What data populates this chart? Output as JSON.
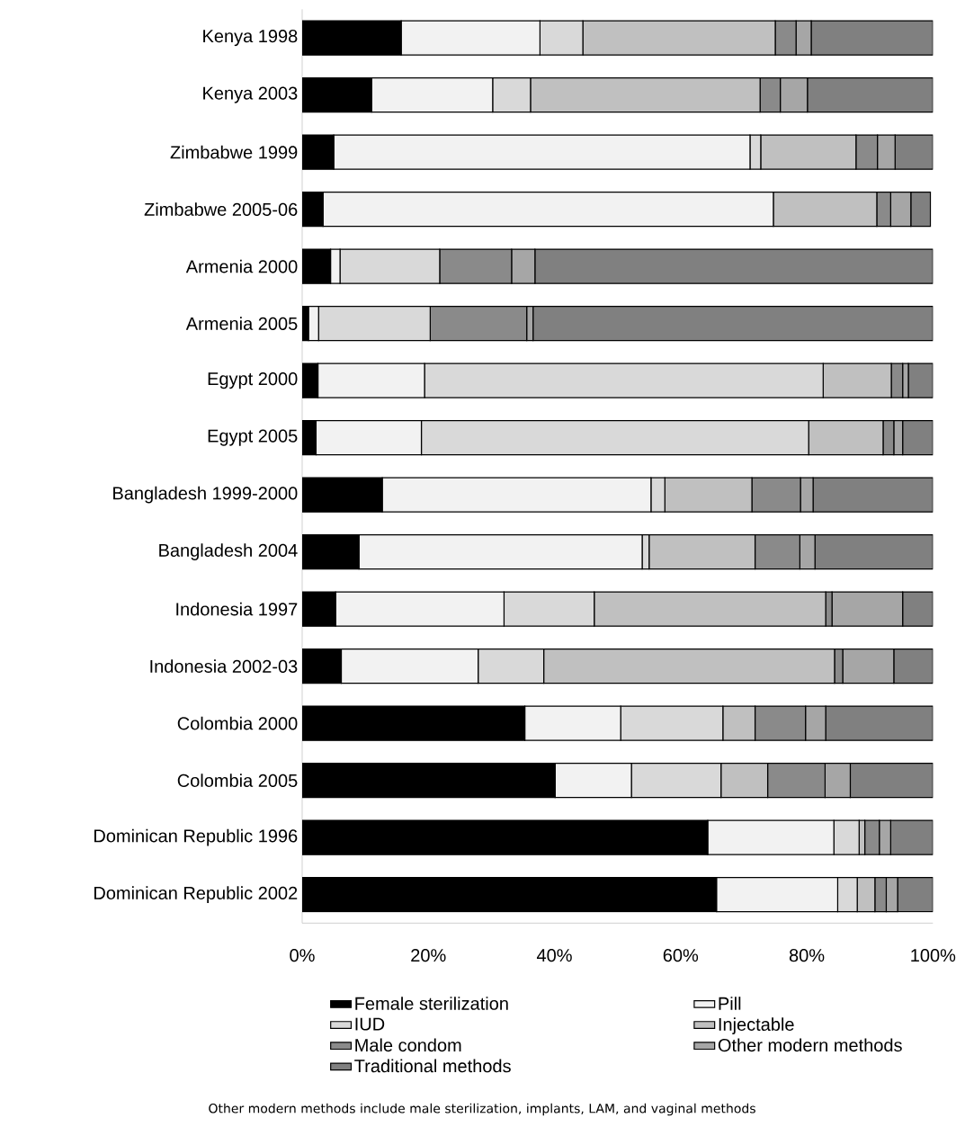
{
  "chart_data": {
    "type": "bar",
    "orientation": "horizontal",
    "stacked": true,
    "categories": [
      "Kenya 1998",
      "Kenya 2003",
      "Zimbabwe 1999",
      "Zimbabwe 2005-06",
      "Armenia 2000",
      "Armenia 2005",
      "Egypt 2000",
      "Egypt 2005",
      "Bangladesh 1999-2000",
      "Bangladesh 2004",
      "Indonesia 1997",
      "Indonesia 2002-03",
      "Colombia 2000",
      "Colombia 2005",
      "Dominican Republic 1996",
      "Dominican Republic 2002"
    ],
    "series": [
      {
        "name": "Female sterilization",
        "color": "#000000",
        "values": [
          15.7,
          11.0,
          5.0,
          3.3,
          4.5,
          1.0,
          2.5,
          2.2,
          12.7,
          9.0,
          5.3,
          6.2,
          35.3,
          40.1,
          64.3,
          65.7
        ]
      },
      {
        "name": "Pill",
        "color": "#f2f2f2",
        "values": [
          22.0,
          19.2,
          66.0,
          71.4,
          1.5,
          1.6,
          16.9,
          16.7,
          42.6,
          44.9,
          26.7,
          21.7,
          15.2,
          12.1,
          20.0,
          19.2
        ]
      },
      {
        "name": "IUD",
        "color": "#d9d9d9",
        "values": [
          6.8,
          6.0,
          1.7,
          null,
          15.8,
          17.7,
          63.2,
          61.4,
          2.2,
          1.1,
          14.3,
          10.4,
          16.2,
          14.2,
          4.0,
          3.1
        ]
      },
      {
        "name": "Injectable",
        "color": "#c0c0c0",
        "values": [
          30.5,
          36.4,
          15.1,
          16.4,
          0,
          0,
          10.8,
          11.8,
          13.8,
          16.8,
          36.7,
          46.1,
          5.1,
          7.4,
          0.9,
          2.8
        ]
      },
      {
        "name": "Male condom",
        "color": "#8a8a8a",
        "values": [
          3.3,
          3.2,
          3.4,
          2.2,
          11.4,
          15.3,
          1.8,
          1.7,
          7.7,
          7.1,
          1.0,
          1.3,
          8.0,
          9.1,
          2.3,
          1.8
        ]
      },
      {
        "name": "Other modern methods",
        "color": "#a6a6a6",
        "values": [
          2.4,
          4.3,
          2.8,
          3.2,
          3.7,
          1.0,
          0.9,
          1.4,
          2.0,
          2.4,
          11.2,
          8.1,
          3.2,
          4.0,
          1.8,
          1.8
        ]
      },
      {
        "name": "Traditional methods",
        "color": "#808080",
        "values": [
          19.3,
          19.9,
          6.0,
          3.1,
          63.1,
          63.4,
          3.9,
          4.8,
          19.0,
          18.7,
          4.8,
          6.2,
          17.0,
          13.1,
          6.7,
          5.6
        ]
      }
    ],
    "xlim": [
      0,
      100
    ],
    "xticks": [
      {
        "value": 0,
        "label": "0%"
      },
      {
        "value": 20,
        "label": "20%"
      },
      {
        "value": 40,
        "label": "40%"
      },
      {
        "value": 60,
        "label": "60%"
      },
      {
        "value": 80,
        "label": "80%"
      },
      {
        "value": 100,
        "label": "100%"
      }
    ],
    "grid": false,
    "legend": "bottom",
    "annotations": [
      "Other modern methods include male sterilization, implants, LAM, and vaginal methods"
    ]
  }
}
